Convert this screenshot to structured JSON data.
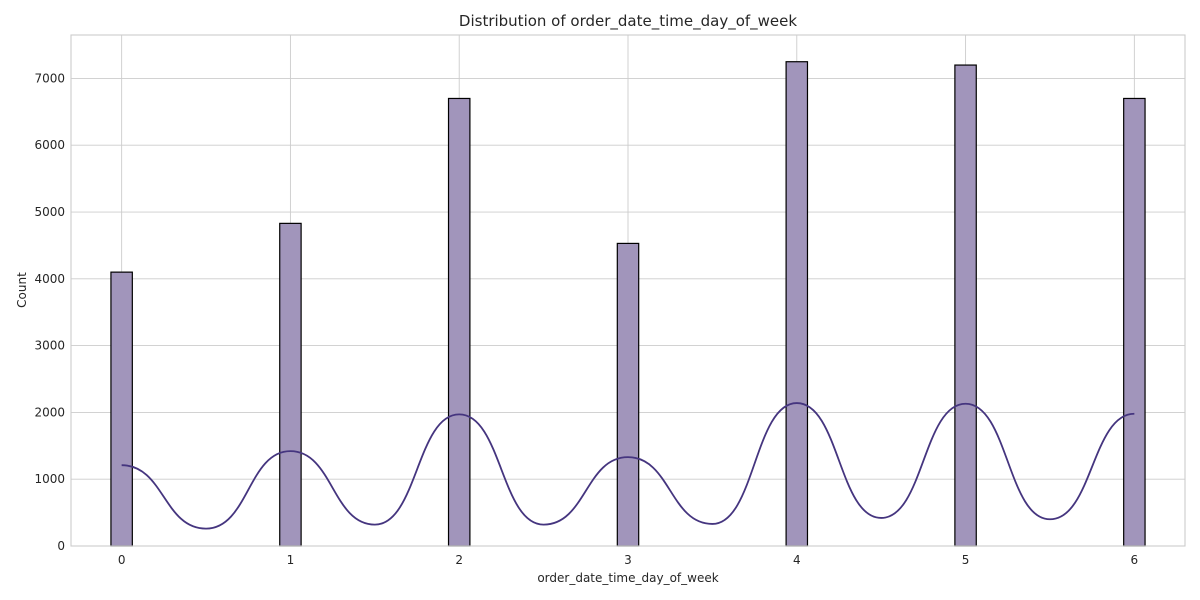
{
  "chart_data": {
    "type": "bar",
    "title": "Distribution of order_date_time_day_of_week",
    "xlabel": "order_date_time_day_of_week",
    "ylabel": "Count",
    "categories": [
      "0",
      "1",
      "2",
      "3",
      "4",
      "5",
      "6"
    ],
    "x": [
      0,
      1,
      2,
      3,
      4,
      5,
      6
    ],
    "values": [
      4100,
      4830,
      6700,
      4530,
      7250,
      7200,
      6700
    ],
    "xlim": [
      -0.3,
      6.3
    ],
    "ylim": [
      0,
      7650
    ],
    "xticks": [
      0,
      1,
      2,
      3,
      4,
      5,
      6
    ],
    "yticks": [
      0,
      1000,
      2000,
      3000,
      4000,
      5000,
      6000,
      7000
    ],
    "bin_width": 0.1667,
    "kde": {
      "x": [
        0,
        0.5,
        1,
        1.5,
        2,
        2.5,
        3,
        3.5,
        4,
        4.5,
        5,
        5.5,
        6
      ],
      "y": [
        1210,
        260,
        1420,
        320,
        1970,
        320,
        1330,
        330,
        2140,
        420,
        2130,
        400,
        1980
      ]
    },
    "grid": true,
    "colors": {
      "bar": "#a195bb",
      "kde": "#45357f"
    }
  }
}
